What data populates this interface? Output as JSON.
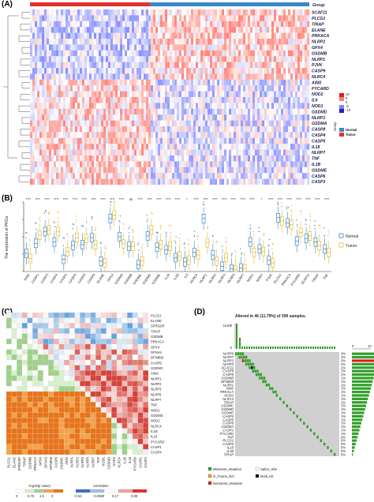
{
  "panel_a": {
    "label": "(A)",
    "group_header": "Group",
    "genes": [
      "SCAF11",
      "PLCG1",
      "TIRAP",
      "ELANE",
      "PRKACA",
      "NLRP2",
      "GPX4",
      "GSDMB",
      "NLRP1",
      "PJVK",
      "CASP9",
      "NLRC4",
      "AIM2",
      "PYCARD",
      "NOD2",
      "IL6",
      "NOD1",
      "GSDMD",
      "NLRP3",
      "GSDMA",
      "CASP8",
      "CASP4",
      "CASP5",
      "IL18",
      "NLRP7",
      "TNF",
      "IL1B",
      "GSDME",
      "CASP6",
      "CASP3"
    ],
    "color_legend": {
      "ticks": [
        "10",
        "5",
        "0",
        "-5",
        "-10"
      ],
      "colors": {
        "high": "#e41a1c",
        "mid": "#ffffff",
        "low": "#1f1fd0"
      }
    },
    "group_legend": {
      "title": "Group",
      "items": [
        {
          "name": "Normal",
          "color": "#3a86c8"
        },
        {
          "name": "Tumor",
          "color": "#e03030"
        }
      ]
    }
  },
  "panel_b": {
    "label": "(B)",
    "ylabel": "The expression of PRGs",
    "legend": [
      {
        "name": "Normal",
        "color": "#3a86c8"
      },
      {
        "name": "Tumor",
        "color": "#e8b830"
      }
    ],
    "chart_data": {
      "type": "box",
      "categories": [
        "AIM2",
        "CASP1",
        "CASP3",
        "CASP4",
        "CASP5",
        "CASP6",
        "CASP8",
        "CASP9",
        "ELANE",
        "GPX4",
        "GSDMA",
        "GSDMB",
        "GSDMC",
        "GSDMD",
        "GSDME",
        "IL18",
        "IL1B",
        "IL6",
        "NLRC4",
        "NLRP1",
        "NLRP2",
        "NLRP3",
        "NLRP6",
        "NLRP7",
        "NOD1",
        "NOD2",
        "PJVK",
        "PLCG1",
        "PRKACA",
        "PYCARD",
        "SCAF11",
        "TIRAP",
        "TNF"
      ],
      "significance": [
        "****",
        "****",
        "****",
        "****",
        "****",
        "****",
        "****",
        "****",
        "****",
        "****",
        "****",
        "ns",
        "****",
        "****",
        "****",
        "****",
        "****",
        "*",
        "****",
        "****",
        "****",
        "****",
        "****",
        "****",
        "****",
        "*",
        "****",
        "****",
        "****",
        "****",
        "****",
        "****",
        "****"
      ],
      "normal_median": [
        4.2,
        6.5,
        9.2,
        6.8,
        2.8,
        6.0,
        6.2,
        7.8,
        2.4,
        12.2,
        8.0,
        5.8,
        1.6,
        8.2,
        5.6,
        5.0,
        3.2,
        2.2,
        4.4,
        12.2,
        3.8,
        1.2,
        0.6,
        0.8,
        6.8,
        5.2,
        2.6,
        12.4,
        11.2,
        7.0,
        7.6,
        6.8,
        5.2
      ],
      "tumor_median": [
        3.0,
        8.4,
        9.6,
        9.2,
        4.6,
        7.8,
        7.6,
        6.2,
        2.0,
        13.0,
        6.4,
        5.8,
        2.4,
        9.6,
        6.2,
        5.8,
        3.6,
        2.6,
        3.8,
        6.6,
        2.4,
        3.2,
        0.4,
        0.6,
        4.4,
        4.6,
        2.0,
        11.6,
        10.8,
        9.0,
        8.2,
        6.0,
        4.4
      ],
      "ylim": [
        0,
        16
      ]
    }
  },
  "panel_c": {
    "label": "(C)",
    "genes": [
      "PLCG1",
      "ELANE",
      "SFRS2IP",
      "TIRAP",
      "GSDMB",
      "PRKACA",
      "GPX4",
      "DFNA5",
      "DFNB59",
      "CASP9",
      "GSDMC",
      "AIM2",
      "NLRP1",
      "NLRP2",
      "NLRP3",
      "NLRP6",
      "NLRP7",
      "TNF",
      "NOD1",
      "GSDMD",
      "NOD2",
      "NLRC4",
      "IL1B",
      "IL18",
      "PYCARD",
      "CASP1",
      "CASP4"
    ],
    "legend_pvalue": {
      "title": "-log10(p value)",
      "ticks": [
        "0",
        "0.75",
        "1.5",
        "3"
      ]
    },
    "legend_corr": {
      "title": "correlation",
      "ticks": [
        "-0.54",
        "-0.0980",
        "0.17",
        "0.88"
      ]
    }
  },
  "panel_d": {
    "label": "(D)",
    "title": "Altered in 46 (11.79%) of 390 samples.",
    "top_axis": [
      "11408",
      "0"
    ],
    "right_axis": [
      "0",
      "10"
    ],
    "genes": [
      "NLRP6",
      "NLRP7",
      "NLRP2",
      "NLRP3",
      "SCAF11",
      "CASP9",
      "CASP8",
      "GSDMB",
      "DFNB59",
      "NLRP1",
      "AIM2",
      "PRKACA",
      "NOD2",
      "NLRC4",
      "TIRAP",
      "GSDMC",
      "GSDMD",
      "GSDME",
      "CASP4",
      "CASP5",
      "CASP6",
      "GSDMA",
      "CASP1",
      "PYCARD",
      "TNF",
      "PLCG1",
      "CASP3",
      "IL18",
      "IL1B",
      "TIRAP"
    ],
    "percents": [
      "4%",
      "3%",
      "3%",
      "2%",
      "2%",
      "1%",
      "1%",
      "1%",
      "1%",
      "1%",
      "1%",
      "1%",
      "1%",
      "1%",
      "1%",
      "1%",
      "1%",
      "1%",
      "1%",
      "1%",
      "1%",
      "1%",
      "1%",
      "1%",
      "0%",
      "0%",
      "0%",
      "0%",
      "0%",
      "0%"
    ],
    "legend": [
      {
        "name": "Missense_Mutation",
        "color": "#33a02c"
      },
      {
        "name": "Splice_Site",
        "color": "#ffffff"
      },
      {
        "name": "In_Frame_Del",
        "color": "#e0a020"
      },
      {
        "name": "Multi_Hit",
        "color": "#000000"
      },
      {
        "name": "Nonsense_Mutation",
        "color": "#e31a1c"
      }
    ]
  }
}
